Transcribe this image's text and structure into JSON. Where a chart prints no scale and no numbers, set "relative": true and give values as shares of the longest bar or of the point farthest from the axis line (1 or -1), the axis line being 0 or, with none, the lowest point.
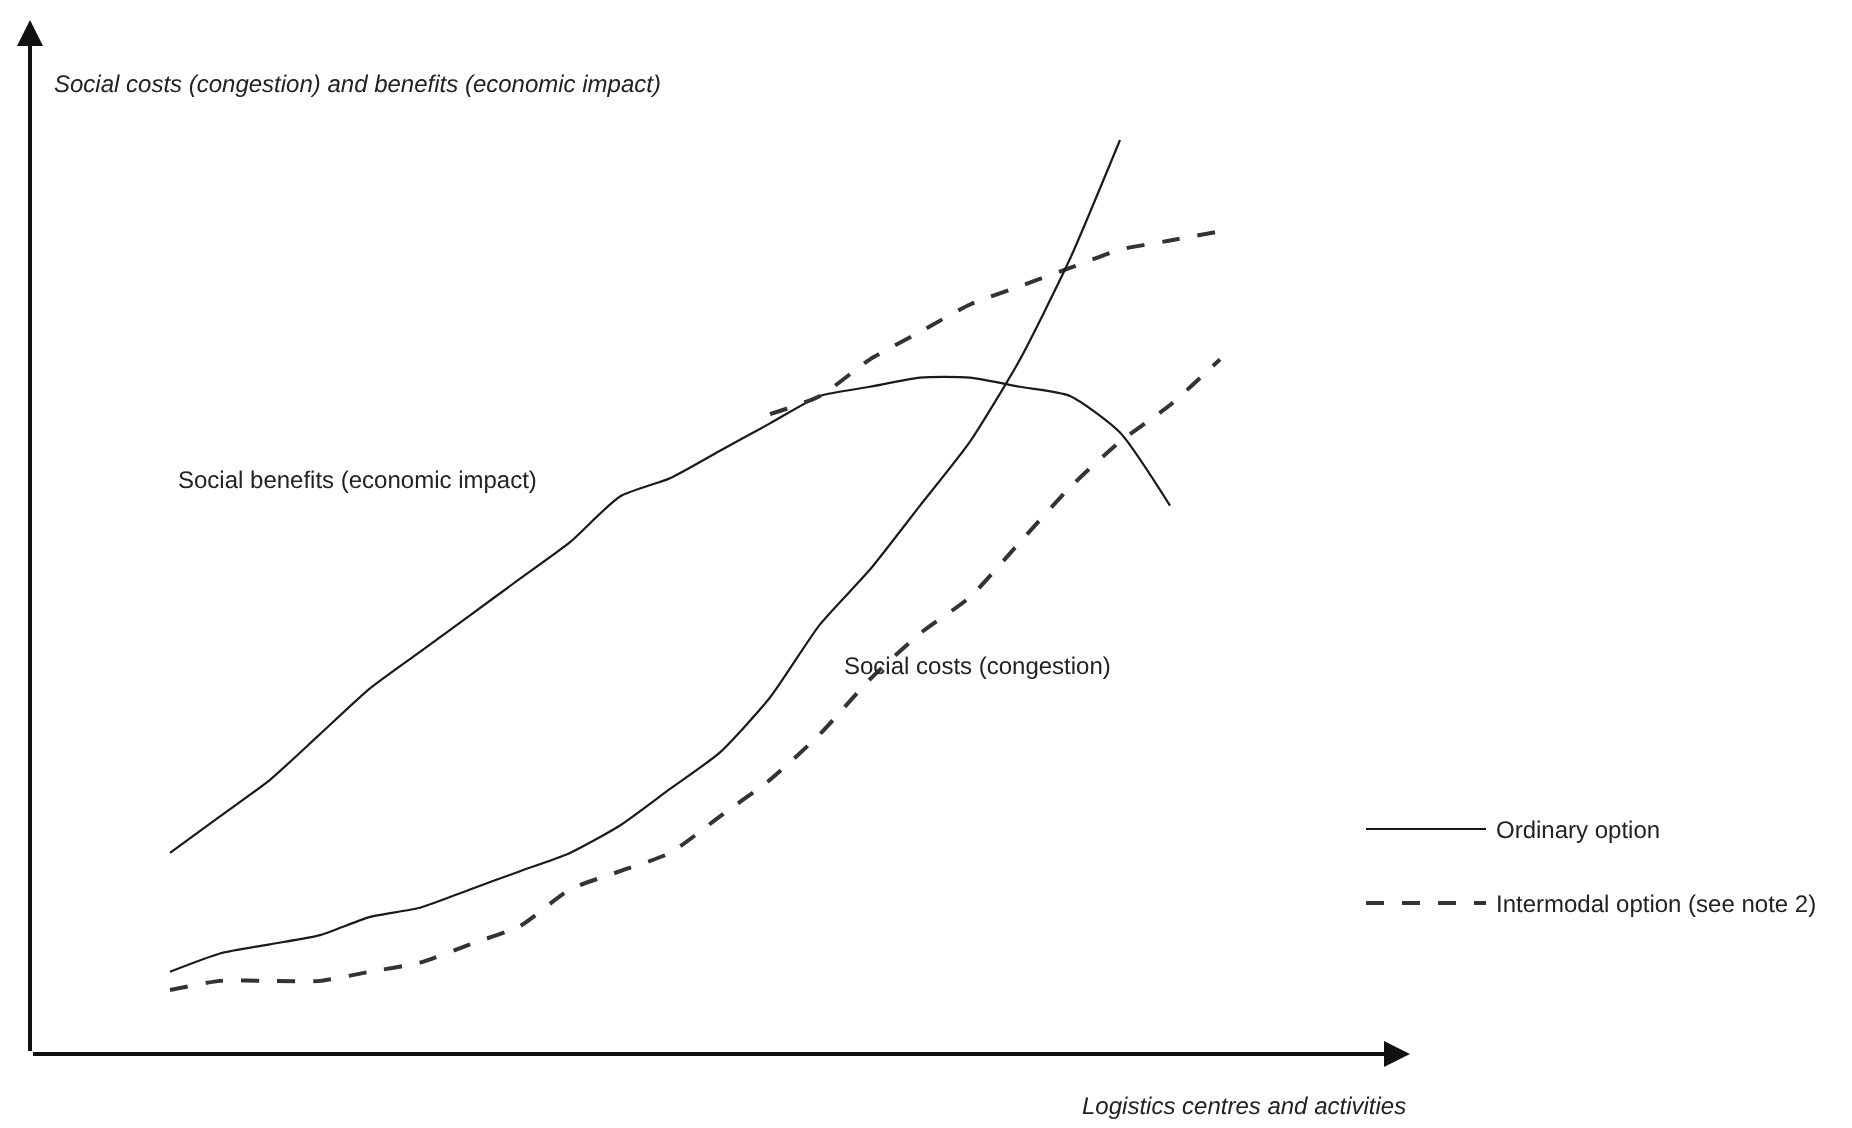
{
  "chart_data": {
    "type": "line",
    "relative": true,
    "xlabel": "Logistics centres and activities",
    "ylabel": "Social costs (congestion) and benefits (economic impact)",
    "categories": [
      null,
      null,
      null,
      null,
      null,
      null,
      null,
      null,
      null,
      null,
      null,
      null,
      null,
      null,
      null,
      null,
      null,
      null,
      null,
      null,
      null,
      null
    ],
    "series": [
      {
        "name": "Ordinary option",
        "color": "#1a1a1a",
        "line_style": "solid",
        "values": [
          0.22,
          0.26,
          0.3,
          0.35,
          0.4,
          0.44,
          0.48,
          0.52,
          0.56,
          0.61,
          0.63,
          0.66,
          0.69,
          0.72,
          0.73,
          0.74,
          0.74,
          0.73,
          0.72,
          0.68,
          0.6,
          null
        ]
      },
      {
        "name": "Intermodal option (see note 2)",
        "color": "#333333",
        "line_style": "dashed",
        "values": [
          null,
          null,
          null,
          null,
          null,
          null,
          null,
          null,
          null,
          null,
          null,
          null,
          0.7,
          0.72,
          0.76,
          0.79,
          0.82,
          0.84,
          0.86,
          0.88,
          0.89,
          0.9
        ]
      },
      {
        "color": "#1a1a1a",
        "line_style": "solid",
        "values": [
          0.09,
          0.11,
          0.12,
          0.13,
          0.15,
          0.16,
          0.18,
          0.2,
          0.22,
          0.25,
          0.29,
          0.33,
          0.39,
          0.47,
          0.53,
          0.6,
          0.67,
          0.76,
          0.87,
          1.0,
          null,
          null
        ]
      },
      {
        "color": "#333333",
        "line_style": "dashed",
        "values": [
          0.07,
          0.08,
          0.08,
          0.08,
          0.09,
          0.1,
          0.12,
          0.14,
          0.18,
          0.2,
          0.22,
          0.26,
          0.3,
          0.35,
          0.41,
          0.46,
          0.5,
          0.56,
          0.62,
          0.67,
          0.71,
          0.76
        ]
      }
    ],
    "annotations": [
      "Social benefits (economic impact)",
      "Social costs (congestion)"
    ],
    "legend": "right",
    "marker": "none"
  }
}
